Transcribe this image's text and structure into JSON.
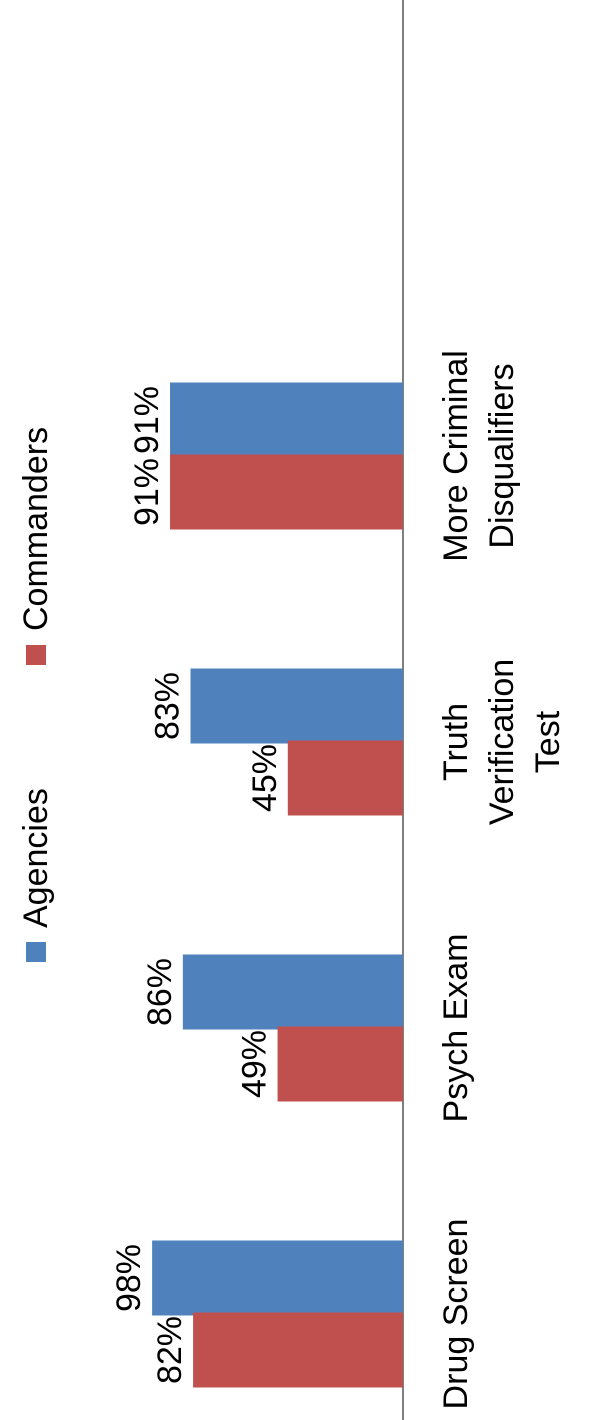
{
  "chart_data": {
    "type": "bar",
    "orientation": "rotated-90-ccw",
    "categories": [
      [
        "Drug Screen"
      ],
      [
        "Psych Exam"
      ],
      [
        "Truth",
        "Verification",
        "Test"
      ],
      [
        "More Criminal",
        "Disqualifiers"
      ]
    ],
    "series": [
      {
        "name": "Agencies",
        "color": "#4F81BD",
        "values": [
          98,
          86,
          83,
          91
        ],
        "labels": [
          "98%",
          "86%",
          "83%",
          "91%"
        ]
      },
      {
        "name": "Commanders",
        "color": "#C0504D",
        "values": [
          82,
          49,
          45,
          91
        ],
        "labels": [
          "82%",
          "49%",
          "45%",
          "91%"
        ]
      }
    ],
    "ylim": [
      0,
      100
    ],
    "grid": false,
    "legend": "top"
  }
}
